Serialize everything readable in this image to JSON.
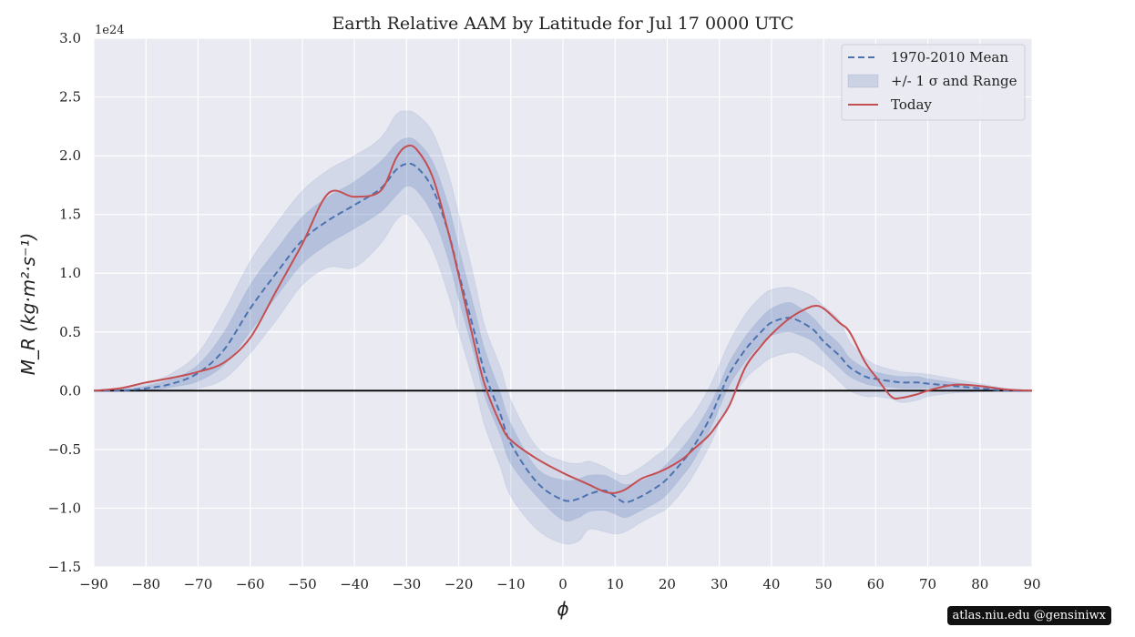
{
  "chart_data": {
    "type": "area",
    "title": "Earth Relative AAM by Latitude for Jul 17 0000 UTC",
    "xlabel": "ϕ",
    "ylabel": "M_R (kg·m²·s⁻¹)",
    "y_offset_label": "1e24",
    "xlim": [
      -90,
      90
    ],
    "ylim": [
      -1.5,
      3.0
    ],
    "x_ticks": [
      -90,
      -80,
      -70,
      -60,
      -50,
      -40,
      -30,
      -20,
      -10,
      0,
      10,
      20,
      30,
      40,
      50,
      60,
      70,
      80,
      90
    ],
    "x_tick_labels": [
      "−90",
      "−80",
      "−70",
      "−60",
      "−50",
      "−40",
      "−30",
      "−20",
      "−10",
      "0",
      "10",
      "20",
      "30",
      "40",
      "50",
      "60",
      "70",
      "80",
      "90"
    ],
    "y_ticks": [
      -1.5,
      -1.0,
      -0.5,
      0.0,
      0.5,
      1.0,
      1.5,
      2.0,
      2.5,
      3.0
    ],
    "y_tick_labels": [
      "−1.5",
      "−1.0",
      "−0.5",
      "0.0",
      "0.5",
      "1.0",
      "1.5",
      "2.0",
      "2.5",
      "3.0"
    ],
    "grid": true,
    "legend_position": "top-right",
    "legend": [
      {
        "label": "1970-2010 Mean",
        "kind": "dashed-line",
        "color": "#4c72b0"
      },
      {
        "label": "+/- 1 σ and Range",
        "kind": "band",
        "color": "#4c72b0"
      },
      {
        "label": "Today",
        "kind": "line",
        "color": "#c44e52"
      }
    ],
    "x": [
      -90,
      -85,
      -80,
      -75,
      -70,
      -65,
      -60,
      -55,
      -50,
      -45,
      -40,
      -35,
      -32,
      -30,
      -28,
      -25,
      -22,
      -20,
      -17,
      -15,
      -12,
      -10,
      -5,
      0,
      3,
      5,
      8,
      10,
      12,
      15,
      18,
      20,
      23,
      25,
      28,
      30,
      32,
      35,
      38,
      40,
      43,
      45,
      48,
      50,
      53,
      55,
      58,
      60,
      63,
      65,
      68,
      70,
      75,
      80,
      85,
      90
    ],
    "series": [
      {
        "name": "1970-2010 Mean",
        "role": "mean",
        "values": [
          0.0,
          0.0,
          0.02,
          0.06,
          0.15,
          0.35,
          0.7,
          1.0,
          1.28,
          1.45,
          1.58,
          1.72,
          1.88,
          1.93,
          1.9,
          1.72,
          1.35,
          1.0,
          0.5,
          0.15,
          -0.2,
          -0.45,
          -0.78,
          -0.93,
          -0.92,
          -0.88,
          -0.85,
          -0.9,
          -0.95,
          -0.9,
          -0.82,
          -0.75,
          -0.6,
          -0.48,
          -0.25,
          -0.05,
          0.15,
          0.35,
          0.5,
          0.58,
          0.62,
          0.6,
          0.52,
          0.42,
          0.3,
          0.2,
          0.12,
          0.1,
          0.08,
          0.07,
          0.07,
          0.06,
          0.04,
          0.02,
          0.0,
          0.0
        ]
      },
      {
        "name": "Today",
        "role": "today",
        "values": [
          0.0,
          0.02,
          0.07,
          0.11,
          0.16,
          0.24,
          0.45,
          0.85,
          1.25,
          1.68,
          1.65,
          1.7,
          1.98,
          2.08,
          2.05,
          1.82,
          1.35,
          0.98,
          0.4,
          0.05,
          -0.28,
          -0.42,
          -0.58,
          -0.7,
          -0.76,
          -0.8,
          -0.86,
          -0.87,
          -0.84,
          -0.75,
          -0.7,
          -0.66,
          -0.58,
          -0.5,
          -0.38,
          -0.26,
          -0.12,
          0.2,
          0.38,
          0.48,
          0.6,
          0.66,
          0.72,
          0.7,
          0.58,
          0.5,
          0.24,
          0.12,
          -0.05,
          -0.06,
          -0.03,
          0.0,
          0.05,
          0.04,
          0.01,
          0.0
        ]
      },
      {
        "name": "+/- 1 σ and Range",
        "role": "sigma",
        "lower": [
          0.0,
          0.0,
          0.0,
          0.03,
          0.08,
          0.22,
          0.5,
          0.8,
          1.08,
          1.25,
          1.38,
          1.52,
          1.66,
          1.74,
          1.7,
          1.5,
          1.12,
          0.78,
          0.3,
          -0.05,
          -0.38,
          -0.62,
          -0.9,
          -1.1,
          -1.08,
          -1.03,
          -1.02,
          -1.05,
          -1.08,
          -1.02,
          -0.95,
          -0.88,
          -0.72,
          -0.6,
          -0.35,
          -0.15,
          0.05,
          0.25,
          0.4,
          0.47,
          0.5,
          0.48,
          0.42,
          0.33,
          0.2,
          0.12,
          0.06,
          0.04,
          0.03,
          0.02,
          0.02,
          0.02,
          0.01,
          0.0,
          0.0,
          0.0
        ],
        "upper": [
          0.0,
          0.01,
          0.04,
          0.1,
          0.22,
          0.5,
          0.9,
          1.2,
          1.48,
          1.65,
          1.78,
          1.95,
          2.1,
          2.15,
          2.12,
          1.95,
          1.58,
          1.22,
          0.7,
          0.35,
          -0.02,
          -0.28,
          -0.66,
          -0.76,
          -0.75,
          -0.72,
          -0.72,
          -0.76,
          -0.8,
          -0.77,
          -0.7,
          -0.62,
          -0.48,
          -0.36,
          -0.14,
          0.05,
          0.25,
          0.46,
          0.62,
          0.7,
          0.75,
          0.72,
          0.62,
          0.52,
          0.4,
          0.28,
          0.19,
          0.16,
          0.13,
          0.12,
          0.12,
          0.1,
          0.07,
          0.04,
          0.01,
          0.0
        ]
      },
      {
        "name": "Range",
        "role": "range",
        "lower": [
          0.0,
          0.0,
          0.0,
          0.0,
          0.02,
          0.1,
          0.32,
          0.6,
          0.9,
          1.05,
          1.05,
          1.25,
          1.45,
          1.5,
          1.42,
          1.2,
          0.82,
          0.5,
          0.05,
          -0.3,
          -0.65,
          -0.9,
          -1.18,
          -1.3,
          -1.28,
          -1.18,
          -1.2,
          -1.22,
          -1.2,
          -1.12,
          -1.05,
          -1.0,
          -0.85,
          -0.72,
          -0.48,
          -0.28,
          -0.1,
          0.1,
          0.22,
          0.28,
          0.32,
          0.32,
          0.25,
          0.2,
          0.08,
          0.0,
          -0.05,
          -0.05,
          -0.07,
          -0.1,
          -0.08,
          -0.05,
          -0.02,
          -0.01,
          0.0,
          0.0
        ],
        "upper": [
          0.0,
          0.02,
          0.06,
          0.15,
          0.32,
          0.68,
          1.1,
          1.42,
          1.7,
          1.88,
          2.0,
          2.15,
          2.35,
          2.38,
          2.35,
          2.2,
          1.85,
          1.5,
          0.95,
          0.55,
          0.2,
          -0.08,
          -0.48,
          -0.6,
          -0.62,
          -0.6,
          -0.65,
          -0.7,
          -0.72,
          -0.65,
          -0.55,
          -0.48,
          -0.3,
          -0.2,
          0.02,
          0.22,
          0.42,
          0.65,
          0.8,
          0.86,
          0.88,
          0.86,
          0.8,
          0.72,
          0.6,
          0.42,
          0.28,
          0.22,
          0.18,
          0.16,
          0.15,
          0.14,
          0.1,
          0.06,
          0.02,
          0.0
        ]
      }
    ]
  },
  "credit": "atlas.niu.edu  @gensiniwx",
  "colors": {
    "plot_bg": "#eaeaf2",
    "grid": "#ffffff",
    "band": "#4c72b0",
    "mean": "#4c72b0",
    "today": "#c44e52",
    "zero_line": "#000000"
  }
}
